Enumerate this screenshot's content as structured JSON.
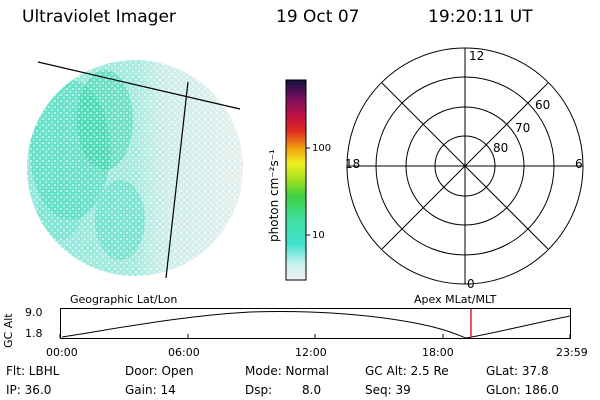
{
  "header": {
    "instrument": "Ultraviolet Imager",
    "date": "19 Oct 07",
    "time": "19:20:11 UT"
  },
  "colorbar": {
    "unit_label": "photon cm⁻²s⁻¹",
    "ticks": [
      "100",
      "10"
    ]
  },
  "polar_plot": {
    "mlt_labels": [
      "12",
      "18",
      "6",
      "0"
    ],
    "lat_labels": [
      "60",
      "70",
      "80"
    ]
  },
  "altitude_panel": {
    "left_title": "Geographic Lat/Lon",
    "right_title": "Apex MLat/MLT",
    "y_axis_label": "GC Alt",
    "y_ticks": [
      "9.0",
      "1.8"
    ],
    "x_ticks": [
      "00:00",
      "06:00",
      "12:00",
      "18:00",
      "23:59"
    ],
    "current_time_marker_hours": 19.34,
    "marker_color": "#e02020"
  },
  "status": {
    "filter": "Flt: LBHL",
    "ip": "IP: 36.0",
    "door": "Door: Open",
    "gain": "Gain: 14",
    "mode": "Mode: Normal",
    "dsp_label": "Dsp:",
    "dsp_value": "8.0",
    "gc_alt": "GC Alt: 2.5 Re",
    "seq": "Seq: 39",
    "glat": "GLat:  37.8",
    "glon": "GLon: 186.0"
  }
}
